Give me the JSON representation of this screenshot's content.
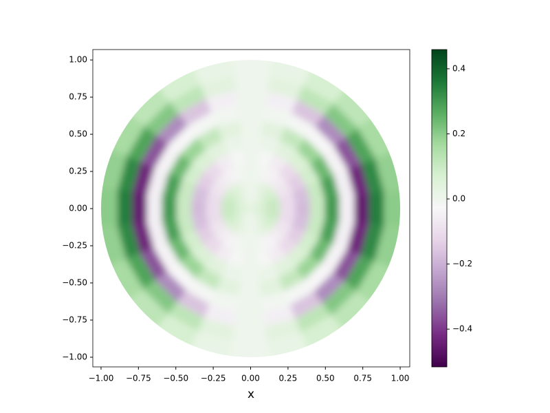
{
  "chart_data": {
    "type": "polar-heatmap",
    "xlabel": "x",
    "colormap": "PRGn",
    "r": [
      0.05,
      0.15,
      0.25,
      0.35,
      0.45,
      0.55,
      0.65,
      0.75,
      0.85,
      0.95
    ],
    "theta": [
      0,
      15,
      30,
      45,
      60,
      75,
      90,
      105,
      120,
      135,
      150,
      165,
      180,
      195,
      210,
      225,
      240,
      255,
      270,
      285,
      300,
      315,
      330,
      345
    ],
    "values": [
      [
        0.06,
        0.06,
        0.05,
        0.04,
        0.02,
        0.01,
        0,
        0.01,
        0.02,
        0.04,
        0.05,
        0.06,
        0.06,
        0.06,
        0.05,
        0.04,
        0.02,
        0.01,
        0,
        0.01,
        0.02,
        0.04,
        0.05,
        0.06
      ],
      [
        0.1,
        0.1,
        0.08,
        0.06,
        0.04,
        0.01,
        0,
        0.01,
        0.04,
        0.06,
        0.08,
        0.1,
        0.1,
        0.1,
        0.08,
        0.06,
        0.04,
        0.01,
        0,
        0.01,
        0.04,
        0.06,
        0.08,
        0.1
      ],
      [
        -0.1,
        -0.1,
        -0.08,
        -0.06,
        -0.04,
        -0.01,
        0,
        -0.01,
        -0.04,
        -0.06,
        -0.08,
        -0.1,
        -0.1,
        -0.1,
        -0.08,
        -0.06,
        -0.04,
        -0.01,
        0,
        -0.01,
        -0.04,
        -0.06,
        -0.08,
        -0.1
      ],
      [
        -0.18,
        -0.17,
        -0.14,
        -0.11,
        -0.06,
        -0.02,
        0,
        -0.02,
        -0.06,
        -0.11,
        -0.14,
        -0.17,
        -0.18,
        -0.17,
        -0.14,
        -0.11,
        -0.06,
        -0.02,
        0,
        -0.02,
        -0.06,
        -0.11,
        -0.14,
        -0.17
      ],
      [
        0.1,
        0.1,
        0.08,
        0.06,
        0.04,
        0.01,
        0,
        0.01,
        0.04,
        0.06,
        0.08,
        0.1,
        0.1,
        0.1,
        0.08,
        0.06,
        0.04,
        0.01,
        0,
        0.01,
        0.04,
        0.06,
        0.08,
        0.1
      ],
      [
        0.3,
        0.29,
        0.24,
        0.18,
        0.11,
        0.04,
        0,
        0.04,
        0.11,
        0.18,
        0.24,
        0.29,
        0.3,
        0.29,
        0.24,
        0.18,
        0.11,
        0.04,
        0,
        0.04,
        0.11,
        0.18,
        0.24,
        0.29
      ],
      [
        -0.05,
        -0.05,
        -0.04,
        -0.03,
        -0.02,
        -0.01,
        0,
        -0.01,
        -0.02,
        -0.03,
        -0.04,
        -0.05,
        -0.05,
        -0.05,
        -0.04,
        -0.03,
        -0.02,
        -0.01,
        0,
        -0.01,
        -0.02,
        -0.03,
        -0.04,
        -0.05
      ],
      [
        -0.45,
        -0.43,
        -0.36,
        -0.27,
        -0.16,
        -0.05,
        0,
        -0.05,
        -0.16,
        -0.27,
        -0.36,
        -0.43,
        -0.45,
        -0.43,
        -0.36,
        -0.27,
        -0.16,
        -0.05,
        0,
        -0.05,
        -0.16,
        -0.27,
        -0.36,
        -0.43
      ],
      [
        0.35,
        0.33,
        0.28,
        0.21,
        0.12,
        0.04,
        0,
        0.04,
        0.12,
        0.21,
        0.28,
        0.33,
        0.35,
        0.33,
        0.28,
        0.21,
        0.12,
        0.04,
        0,
        0.04,
        0.12,
        0.21,
        0.28,
        0.33
      ],
      [
        0.2,
        0.19,
        0.16,
        0.12,
        0.07,
        0.02,
        0,
        0.02,
        0.07,
        0.12,
        0.16,
        0.19,
        0.2,
        0.19,
        0.16,
        0.12,
        0.07,
        0.02,
        0,
        0.02,
        0.07,
        0.12,
        0.16,
        0.19
      ]
    ],
    "xlim": [
      -1.055,
      1.064
    ],
    "ylim": [
      -1.065,
      1.07
    ],
    "xticks": [
      {
        "value": -1,
        "label": "−1.00"
      },
      {
        "value": -0.75,
        "label": "−0.75"
      },
      {
        "value": -0.5,
        "label": "−0.50"
      },
      {
        "value": -0.25,
        "label": "−0.25"
      },
      {
        "value": 0,
        "label": "0.00"
      },
      {
        "value": 0.25,
        "label": "0.25"
      },
      {
        "value": 0.5,
        "label": "0.50"
      },
      {
        "value": 0.75,
        "label": "0.75"
      },
      {
        "value": 1,
        "label": "1.00"
      }
    ],
    "yticks": [
      {
        "value": -1,
        "label": "−1.00"
      },
      {
        "value": -0.75,
        "label": "−0.75"
      },
      {
        "value": -0.5,
        "label": "−0.50"
      },
      {
        "value": -0.25,
        "label": "−0.25"
      },
      {
        "value": 0,
        "label": "0.00"
      },
      {
        "value": 0.25,
        "label": "0.25"
      },
      {
        "value": 0.5,
        "label": "0.50"
      },
      {
        "value": 0.75,
        "label": "0.75"
      },
      {
        "value": 1,
        "label": "1.00"
      }
    ],
    "clim": [
      -0.516,
      0.459
    ],
    "cticks": [
      {
        "value": -0.4,
        "label": "−0.4"
      },
      {
        "value": -0.2,
        "label": "−0.2"
      },
      {
        "value": 0,
        "label": "0.0"
      },
      0.2,
      0.4
    ]
  }
}
